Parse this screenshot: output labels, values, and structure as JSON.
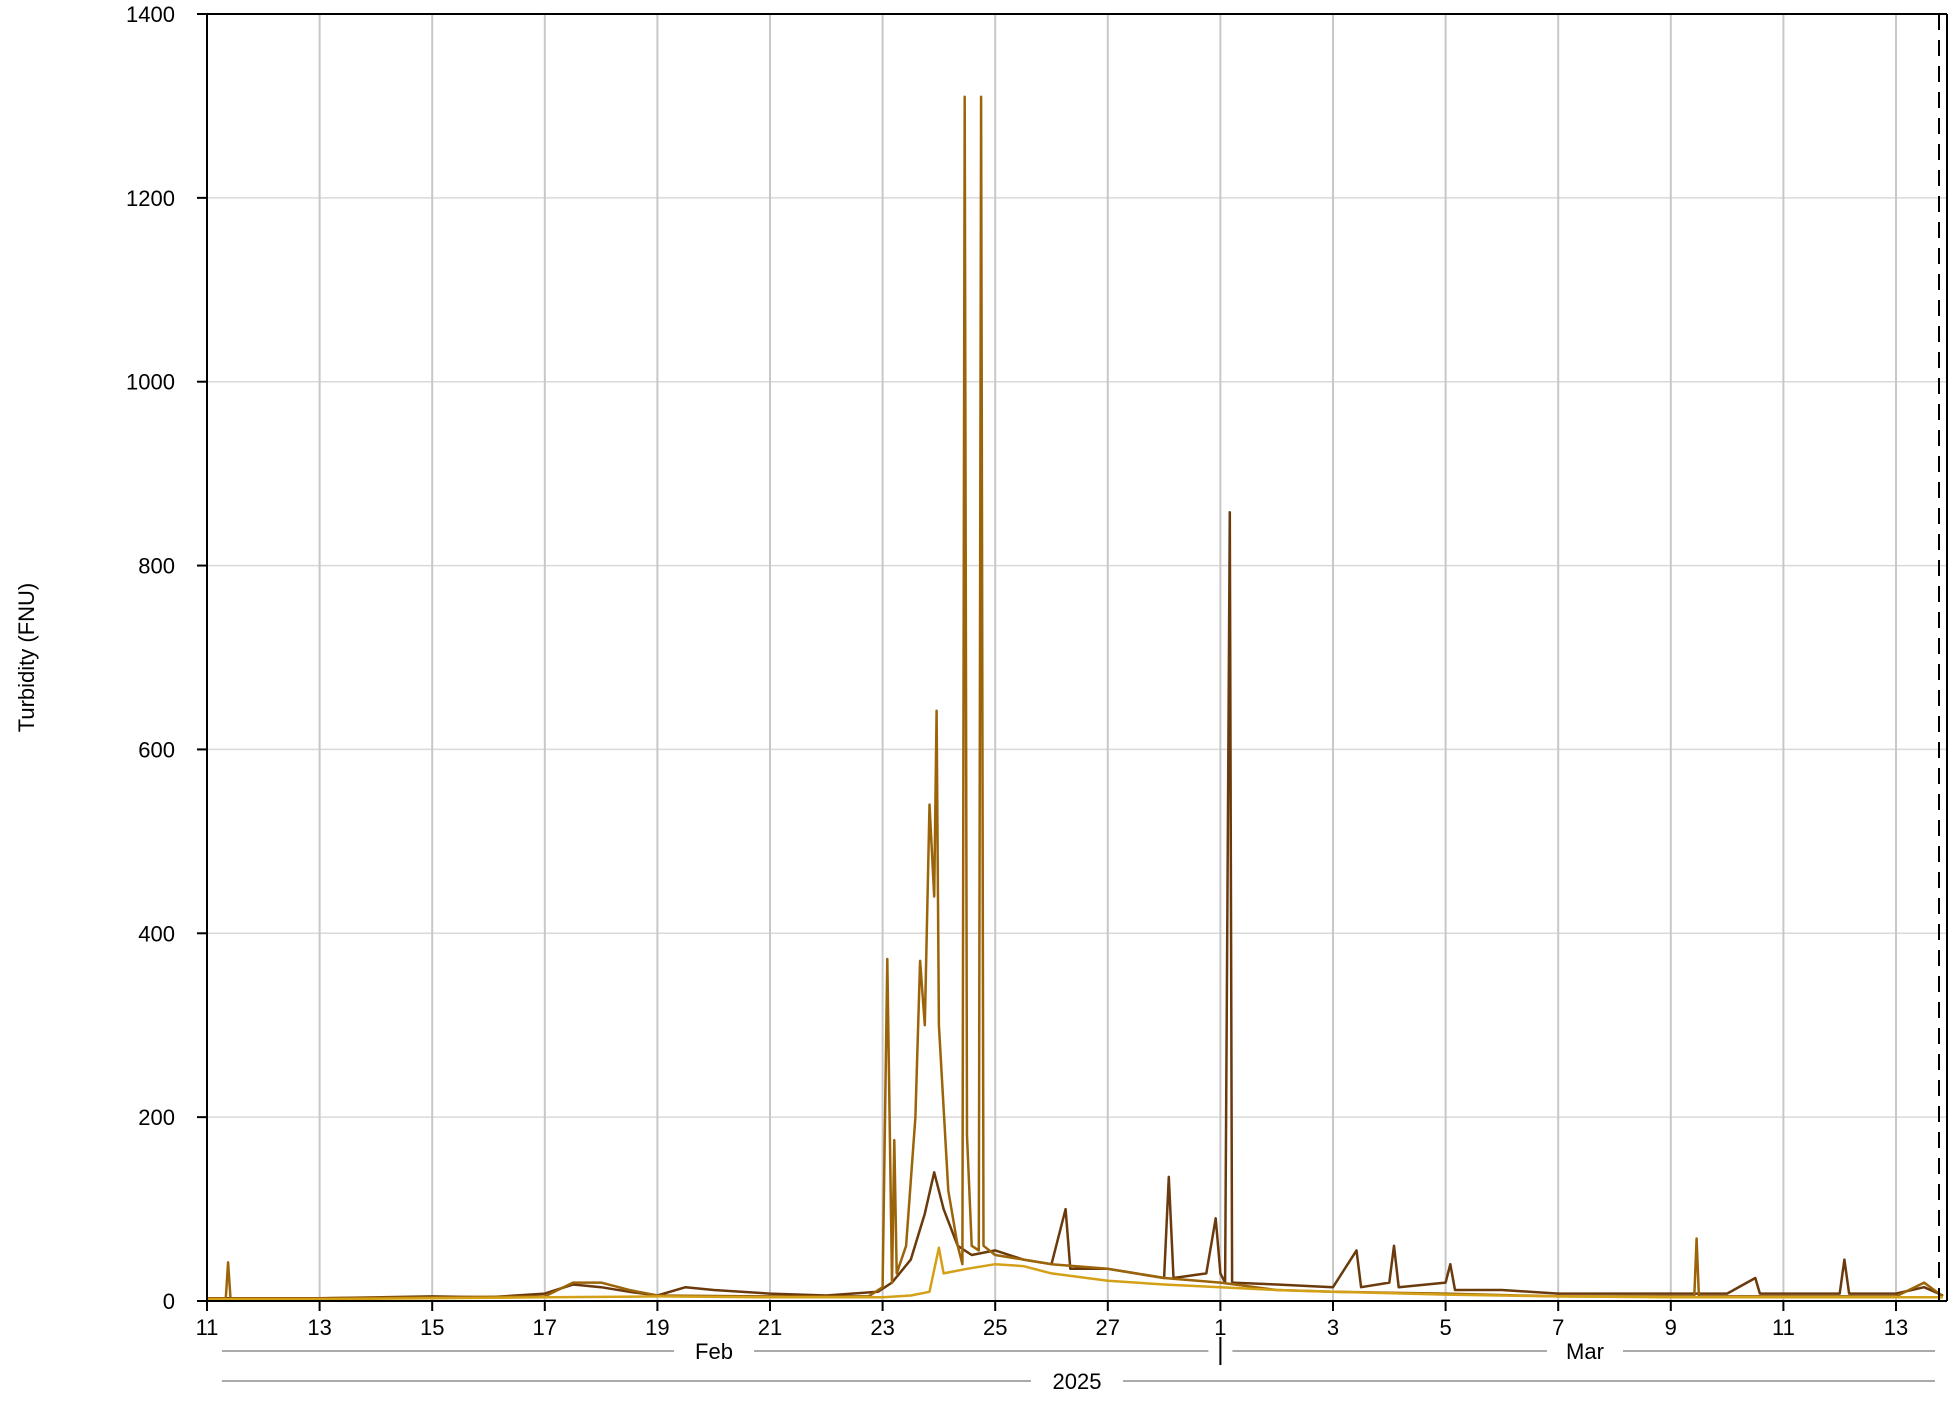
{
  "chart_data": {
    "type": "line",
    "ylabel": "Turbidity (FNU)",
    "ylim": [
      0,
      1400
    ],
    "yticks": [
      0,
      200,
      400,
      600,
      800,
      1000,
      1200,
      1400
    ],
    "xlim": [
      "2025-02-11",
      "2025-03-13T22:00"
    ],
    "xtick_labels": [
      "11",
      "13",
      "15",
      "17",
      "19",
      "21",
      "23",
      "25",
      "27",
      "1",
      "3",
      "5",
      "7",
      "9",
      "11",
      "13"
    ],
    "xticks": [
      "2025-02-11",
      "2025-02-13",
      "2025-02-15",
      "2025-02-17",
      "2025-02-19",
      "2025-02-21",
      "2025-02-23",
      "2025-02-25",
      "2025-02-27",
      "2025-03-01",
      "2025-03-03",
      "2025-03-05",
      "2025-03-07",
      "2025-03-09",
      "2025-03-11",
      "2025-03-13"
    ],
    "month_labels": [
      "Feb",
      "Mar"
    ],
    "year_label": "2025",
    "grid": true,
    "colors": [
      "#6b3a0c",
      "#9c6408",
      "#d4a017"
    ],
    "series": [
      {
        "color": "#6b3a0c",
        "points": [
          [
            "2025-02-11T00:00",
            3
          ],
          [
            "2025-02-13T00:00",
            3
          ],
          [
            "2025-02-15T00:00",
            5
          ],
          [
            "2025-02-16T00:00",
            4
          ],
          [
            "2025-02-17T00:00",
            8
          ],
          [
            "2025-02-17T12:00",
            18
          ],
          [
            "2025-02-18T00:00",
            15
          ],
          [
            "2025-02-18T12:00",
            10
          ],
          [
            "2025-02-19T00:00",
            6
          ],
          [
            "2025-02-19T12:00",
            15
          ],
          [
            "2025-02-20T00:00",
            12
          ],
          [
            "2025-02-21T00:00",
            8
          ],
          [
            "2025-02-22T00:00",
            6
          ],
          [
            "2025-02-22T22:00",
            10
          ],
          [
            "2025-02-23T04:00",
            20
          ],
          [
            "2025-02-23T12:00",
            45
          ],
          [
            "2025-02-23T18:00",
            95
          ],
          [
            "2025-02-23T22:00",
            140
          ],
          [
            "2025-02-24T02:00",
            100
          ],
          [
            "2025-02-24T08:00",
            60
          ],
          [
            "2025-02-24T14:00",
            50
          ],
          [
            "2025-02-25T00:00",
            55
          ],
          [
            "2025-02-25T12:00",
            45
          ],
          [
            "2025-02-26T00:00",
            40
          ],
          [
            "2025-02-26T06:00",
            100
          ],
          [
            "2025-02-26T08:00",
            35
          ],
          [
            "2025-02-27T00:00",
            35
          ],
          [
            "2025-02-27T12:00",
            30
          ],
          [
            "2025-02-28T00:00",
            25
          ],
          [
            "2025-02-28T02:00",
            135
          ],
          [
            "2025-02-28T04:00",
            25
          ],
          [
            "2025-02-28T18:00",
            30
          ],
          [
            "2025-02-28T22:00",
            90
          ],
          [
            "2025-03-01T00:00",
            30
          ],
          [
            "2025-03-01T02:00",
            20
          ],
          [
            "2025-03-01T04:00",
            858
          ],
          [
            "2025-03-01T05:00",
            20
          ],
          [
            "2025-03-02T00:00",
            18
          ],
          [
            "2025-03-03T00:00",
            15
          ],
          [
            "2025-03-03T10:00",
            55
          ],
          [
            "2025-03-03T12:00",
            15
          ],
          [
            "2025-03-04T00:00",
            20
          ],
          [
            "2025-03-04T02:00",
            60
          ],
          [
            "2025-03-04T04:00",
            15
          ],
          [
            "2025-03-05T00:00",
            20
          ],
          [
            "2025-03-05T02:00",
            40
          ],
          [
            "2025-03-05T04:00",
            12
          ],
          [
            "2025-03-06T00:00",
            12
          ],
          [
            "2025-03-07T00:00",
            8
          ],
          [
            "2025-03-08T00:00",
            8
          ],
          [
            "2025-03-09T00:00",
            8
          ],
          [
            "2025-03-10T00:00",
            8
          ],
          [
            "2025-03-10T12:00",
            25
          ],
          [
            "2025-03-10T14:00",
            8
          ],
          [
            "2025-03-11T00:00",
            8
          ],
          [
            "2025-03-12T00:00",
            8
          ],
          [
            "2025-03-12T02:00",
            45
          ],
          [
            "2025-03-12T04:00",
            8
          ],
          [
            "2025-03-13T00:00",
            8
          ],
          [
            "2025-03-13T12:00",
            15
          ],
          [
            "2025-03-13T20:00",
            6
          ]
        ]
      },
      {
        "color": "#9c6408",
        "points": [
          [
            "2025-02-11T00:00",
            3
          ],
          [
            "2025-02-11T08:00",
            3
          ],
          [
            "2025-02-11T09:00",
            42
          ],
          [
            "2025-02-11T10:00",
            3
          ],
          [
            "2025-02-13T00:00",
            3
          ],
          [
            "2025-02-15T00:00",
            4
          ],
          [
            "2025-02-17T00:00",
            5
          ],
          [
            "2025-02-17T12:00",
            20
          ],
          [
            "2025-02-18T00:00",
            20
          ],
          [
            "2025-02-18T12:00",
            12
          ],
          [
            "2025-02-19T00:00",
            6
          ],
          [
            "2025-02-21T00:00",
            5
          ],
          [
            "2025-02-22T18:00",
            5
          ],
          [
            "2025-02-23T00:00",
            15
          ],
          [
            "2025-02-23T02:00",
            372
          ],
          [
            "2025-02-23T04:00",
            20
          ],
          [
            "2025-02-23T05:00",
            175
          ],
          [
            "2025-02-23T06:00",
            30
          ],
          [
            "2025-02-23T10:00",
            60
          ],
          [
            "2025-02-23T14:00",
            200
          ],
          [
            "2025-02-23T16:00",
            370
          ],
          [
            "2025-02-23T18:00",
            300
          ],
          [
            "2025-02-23T20:00",
            540
          ],
          [
            "2025-02-23T22:00",
            440
          ],
          [
            "2025-02-23T23:00",
            642
          ],
          [
            "2025-02-24T00:00",
            300
          ],
          [
            "2025-02-24T04:00",
            120
          ],
          [
            "2025-02-24T08:00",
            60
          ],
          [
            "2025-02-24T10:00",
            40
          ],
          [
            "2025-02-24T11:00",
            1310
          ],
          [
            "2025-02-24T12:00",
            180
          ],
          [
            "2025-02-24T14:00",
            60
          ],
          [
            "2025-02-24T17:00",
            55
          ],
          [
            "2025-02-24T18:00",
            1310
          ],
          [
            "2025-02-24T19:00",
            60
          ],
          [
            "2025-02-25T00:00",
            50
          ],
          [
            "2025-02-26T00:00",
            40
          ],
          [
            "2025-02-27T00:00",
            35
          ],
          [
            "2025-02-28T00:00",
            25
          ],
          [
            "2025-03-01T00:00",
            20
          ],
          [
            "2025-03-02T00:00",
            12
          ],
          [
            "2025-03-03T00:00",
            10
          ],
          [
            "2025-03-05T00:00",
            8
          ],
          [
            "2025-03-07T00:00",
            5
          ],
          [
            "2025-03-09T00:00",
            5
          ],
          [
            "2025-03-09T10:00",
            5
          ],
          [
            "2025-03-09T11:00",
            68
          ],
          [
            "2025-03-09T12:00",
            5
          ],
          [
            "2025-03-11T00:00",
            5
          ],
          [
            "2025-03-13T00:00",
            5
          ],
          [
            "2025-03-13T12:00",
            20
          ],
          [
            "2025-03-13T20:00",
            5
          ]
        ]
      },
      {
        "color": "#d4a017",
        "points": [
          [
            "2025-02-11T00:00",
            2
          ],
          [
            "2025-02-13T00:00",
            2
          ],
          [
            "2025-02-15T00:00",
            3
          ],
          [
            "2025-02-17T00:00",
            4
          ],
          [
            "2025-02-19T00:00",
            5
          ],
          [
            "2025-02-21T00:00",
            4
          ],
          [
            "2025-02-23T00:00",
            4
          ],
          [
            "2025-02-23T12:00",
            6
          ],
          [
            "2025-02-23T20:00",
            10
          ],
          [
            "2025-02-24T00:00",
            58
          ],
          [
            "2025-02-24T02:00",
            30
          ],
          [
            "2025-02-24T12:00",
            35
          ],
          [
            "2025-02-25T00:00",
            40
          ],
          [
            "2025-02-25T12:00",
            38
          ],
          [
            "2025-02-26T00:00",
            30
          ],
          [
            "2025-02-27T00:00",
            22
          ],
          [
            "2025-02-28T00:00",
            18
          ],
          [
            "2025-03-01T00:00",
            15
          ],
          [
            "2025-03-02T00:00",
            12
          ],
          [
            "2025-03-03T00:00",
            10
          ],
          [
            "2025-03-05T00:00",
            7
          ],
          [
            "2025-03-07T00:00",
            5
          ],
          [
            "2025-03-09T00:00",
            4
          ],
          [
            "2025-03-11T00:00",
            4
          ],
          [
            "2025-03-13T00:00",
            4
          ],
          [
            "2025-03-13T20:00",
            4
          ]
        ]
      }
    ]
  }
}
